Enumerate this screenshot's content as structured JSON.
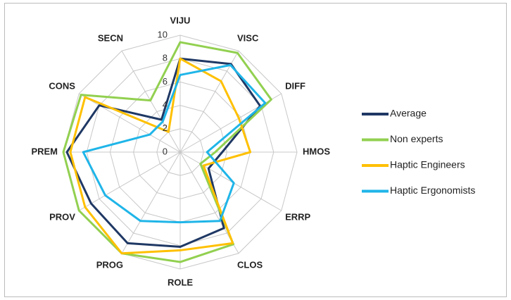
{
  "chart_data": {
    "type": "radar",
    "categories": [
      "VIJU",
      "VISC",
      "DIFF",
      "HMOS",
      "ERRP",
      "CLOS",
      "ROLE",
      "PROG",
      "PROV",
      "PREM",
      "CONS",
      "SECN"
    ],
    "rlim": [
      0,
      10
    ],
    "rticks": [
      0,
      2,
      4,
      6,
      8,
      10
    ],
    "grid": true,
    "legend": "right",
    "series": [
      {
        "name": "Average",
        "color": "#1f3864",
        "values": [
          8,
          8.7,
          7.9,
          3.6,
          2.8,
          7.5,
          8.1,
          9,
          8.8,
          9.7,
          8,
          3.2
        ]
      },
      {
        "name": "Non experts",
        "color": "#92d050",
        "values": [
          9.4,
          9.8,
          9,
          3,
          2,
          9.1,
          9.4,
          10,
          10,
          10,
          9.8,
          5.1
        ]
      },
      {
        "name": "Haptic Engineers",
        "color": "#ffc000",
        "values": [
          8,
          7,
          5.8,
          6,
          2.3,
          9,
          8.4,
          10,
          9.4,
          9.4,
          9.4,
          2
        ]
      },
      {
        "name": "Haptic Ergonomists",
        "color": "#1fb5e8",
        "values": [
          6.6,
          8.6,
          8.4,
          2.3,
          5.3,
          6.8,
          6,
          6.8,
          7.4,
          8.3,
          3,
          3
        ]
      }
    ]
  }
}
